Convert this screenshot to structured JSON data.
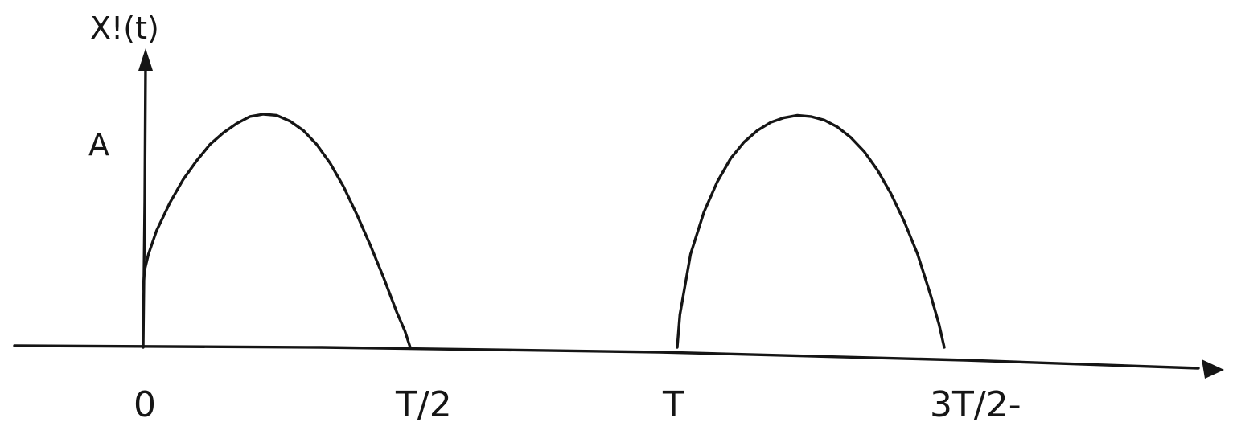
{
  "chart_data": {
    "type": "line",
    "ylabel": "X!(t)",
    "level_label": "A",
    "x_ticks": [
      {
        "value": 0,
        "label": "0"
      },
      {
        "value": 0.5,
        "label": "T/2"
      },
      {
        "value": 1,
        "label": "T"
      },
      {
        "value": 1.5,
        "label": "3T/2-"
      }
    ],
    "series": [
      {
        "x": [
          0,
          0.0025,
          0.01,
          0.025,
          0.05,
          0.075,
          0.1,
          0.125,
          0.15,
          0.175,
          0.2,
          0.225,
          0.25,
          0.275,
          0.3,
          0.325,
          0.35,
          0.375,
          0.4,
          0.425,
          0.45,
          0.475,
          0.49,
          0.5
        ],
        "y": [
          0.25,
          0.33,
          0.4,
          0.5,
          0.62,
          0.72,
          0.8,
          0.87,
          0.92,
          0.96,
          0.99,
          1.0,
          0.995,
          0.97,
          0.93,
          0.87,
          0.79,
          0.69,
          0.57,
          0.44,
          0.3,
          0.15,
          0.07,
          0
        ]
      },
      {
        "x": [
          1,
          1.005,
          1.025,
          1.05,
          1.075,
          1.1,
          1.125,
          1.15,
          1.175,
          1.2,
          1.225,
          1.25,
          1.275,
          1.3,
          1.325,
          1.35,
          1.375,
          1.4,
          1.425,
          1.45,
          1.475,
          1.49,
          1.5
        ],
        "y": [
          0,
          0.14,
          0.4,
          0.58,
          0.71,
          0.81,
          0.88,
          0.93,
          0.965,
          0.985,
          0.995,
          0.99,
          0.975,
          0.945,
          0.9,
          0.84,
          0.76,
          0.66,
          0.54,
          0.4,
          0.22,
          0.1,
          0
        ]
      }
    ],
    "y_level": 1
  }
}
